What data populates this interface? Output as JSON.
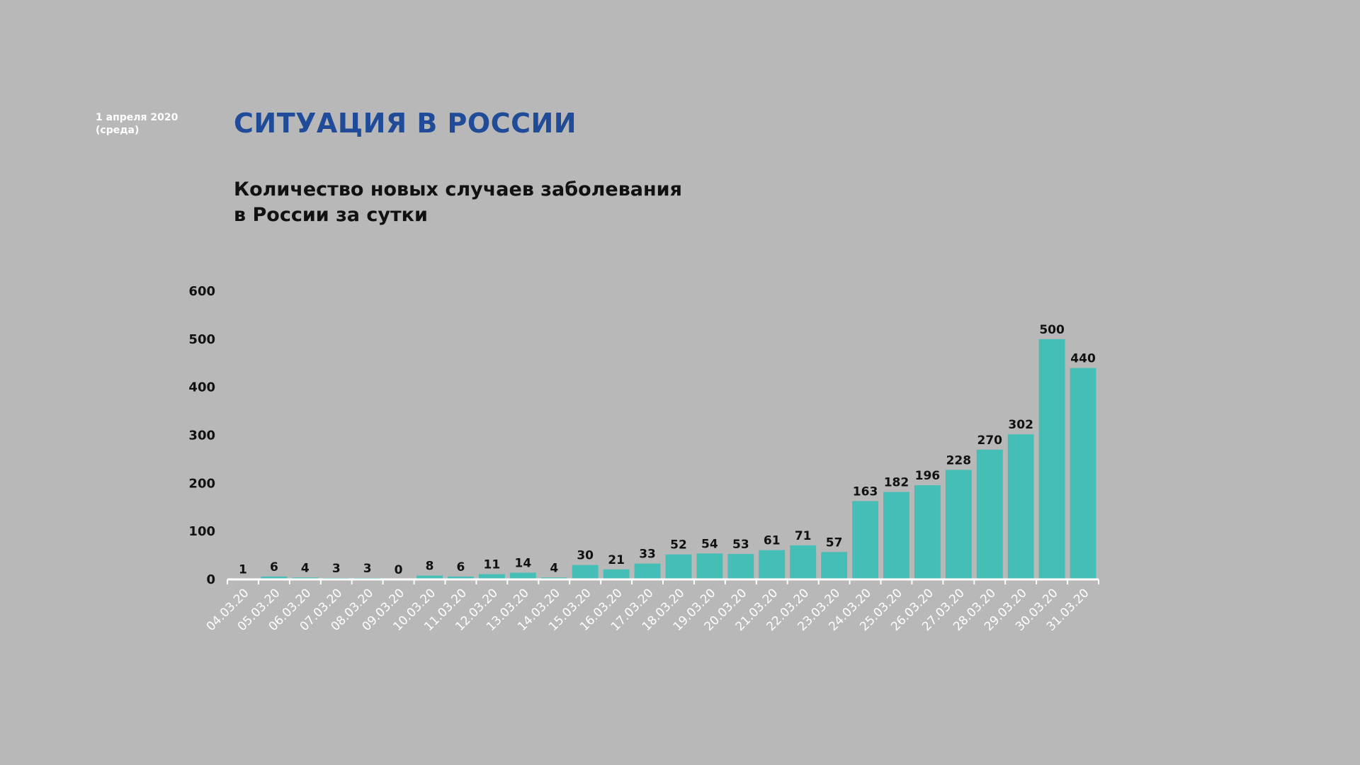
{
  "header": {
    "date_line1": "1 апреля 2020",
    "date_line2": "(среда)",
    "heading": "СИТУАЦИЯ В РОССИИ",
    "subtitle_line1": "Количество новых случаев заболевания",
    "subtitle_line2": "в России за сутки"
  },
  "colors": {
    "background": "#b8b8b8",
    "heading": "#1f4b99",
    "bar": "#45bfb6",
    "axis": "#ffffff",
    "x_tick_text": "#ffffff",
    "text": "#111111"
  },
  "chart_data": {
    "type": "bar",
    "categories": [
      "04.03.20",
      "05.03.20",
      "06.03.20",
      "07.03.20",
      "08.03.20",
      "09.03.20",
      "10.03.20",
      "11.03.20",
      "12.03.20",
      "13.03.20",
      "14.03.20",
      "15.03.20",
      "16.03.20",
      "17.03.20",
      "18.03.20",
      "19.03.20",
      "20.03.20",
      "21.03.20",
      "22.03.20",
      "23.03.20",
      "24.03.20",
      "25.03.20",
      "26.03.20",
      "27.03.20",
      "28.03.20",
      "29.03.20",
      "30.03.20",
      "31.03.20"
    ],
    "values": [
      1,
      6,
      4,
      3,
      3,
      0,
      8,
      6,
      11,
      14,
      4,
      30,
      21,
      33,
      52,
      54,
      53,
      61,
      71,
      57,
      163,
      182,
      196,
      228,
      270,
      302,
      500,
      440
    ],
    "ylim": [
      0,
      600
    ],
    "yticks": [
      0,
      100,
      200,
      300,
      400,
      500,
      600
    ],
    "grid": false,
    "legend": "none",
    "data_labels": true,
    "xlabel": "",
    "ylabel": ""
  }
}
